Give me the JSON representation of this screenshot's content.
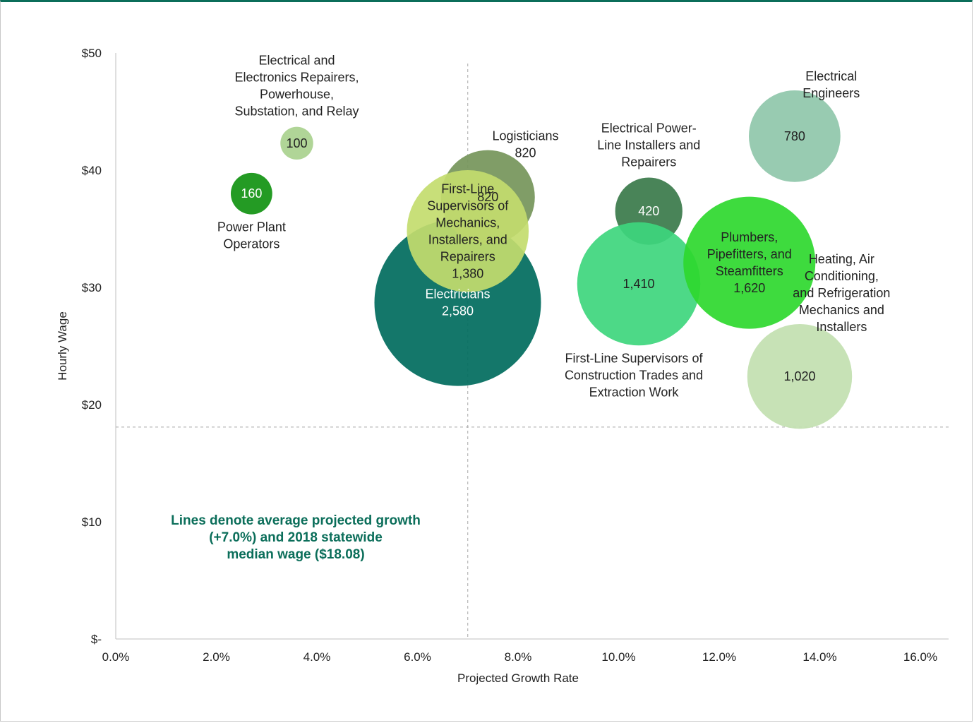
{
  "chart_data": {
    "type": "bubble",
    "xlabel": "Projected Growth Rate",
    "ylabel": "Hourly Wage",
    "xlim": [
      0,
      16
    ],
    "ylim": [
      0,
      50
    ],
    "x_ticks": [
      "0.0%",
      "2.0%",
      "4.0%",
      "6.0%",
      "8.0%",
      "10.0%",
      "12.0%",
      "14.0%",
      "16.0%"
    ],
    "y_ticks": [
      "$-",
      "$10",
      "$20",
      "$30",
      "$40",
      "$50"
    ],
    "reference_lines": {
      "avg_growth": 7.0,
      "median_wage": 18.08
    },
    "annotation": [
      "Lines denote average projected growth",
      "(+7.0%) and 2018 statewide",
      "median wage ($18.08)"
    ],
    "points": [
      {
        "name": "Electricians",
        "x": 6.8,
        "y": 28.7,
        "size": 2580,
        "size_label": "2,580",
        "color": "#006b5d",
        "label_color": "#ffffff",
        "label": [
          "Electricians"
        ],
        "label_pos": "inside"
      },
      {
        "name": "Logisticians",
        "x": 7.4,
        "y": 37.7,
        "size": 820,
        "size_label": "820",
        "color": "#75955a",
        "label_color": "#222222",
        "label": [
          "Logisticians",
          "820"
        ],
        "label_pos": "upper-right"
      },
      {
        "name": "First-Line Supervisors of Mechanics, Installers, and Repairers",
        "x": 7.0,
        "y": 34.8,
        "size": 1380,
        "size_label": "1,380",
        "color": "#c3dc6e",
        "label_color": "#222222",
        "label": [
          "First-Line",
          "Supervisors of",
          "Mechanics,",
          "Installers, and",
          "Repairers"
        ],
        "label_pos": "inside"
      },
      {
        "name": "Electrical and Electronics Repairers, Powerhouse, Substation, and Relay",
        "x": 3.6,
        "y": 42.3,
        "size": 100,
        "size_label": "100",
        "color": "#a9d18e",
        "label_color": "#222222",
        "label": [
          "Electrical and",
          "Electronics Repairers,",
          "Powerhouse,",
          "Substation, and Relay"
        ],
        "label_pos": "above"
      },
      {
        "name": "Power Plant Operators",
        "x": 2.7,
        "y": 38.0,
        "size": 160,
        "size_label": "160",
        "color": "#119211",
        "label_color": "#ffffff",
        "label": [
          "Power Plant",
          "Operators"
        ],
        "label_pos": "below"
      },
      {
        "name": "Electrical Power-Line Installers and Repairers",
        "x": 10.6,
        "y": 36.5,
        "size": 420,
        "size_label": "420",
        "color": "#3a7a4a",
        "label_color": "#ffffff",
        "label": [
          "Electrical Power-",
          "Line Installers and",
          "Repairers"
        ],
        "label_pos": "above"
      },
      {
        "name": "First-Line Supervisors of Construction Trades and Extraction Work",
        "x": 10.4,
        "y": 30.3,
        "size": 1410,
        "size_label": "1,410",
        "color": "#3ed67d",
        "label_color": "#222222",
        "label": [
          "First-Line Supervisors of",
          "Construction Trades and",
          "Extraction Work"
        ],
        "label_pos": "below-left"
      },
      {
        "name": "Plumbers, Pipefitters, and Steamfitters",
        "x": 12.6,
        "y": 32.1,
        "size": 1620,
        "size_label": "1,620",
        "color": "#2ed82e",
        "label_color": "#222222",
        "label": [
          "Plumbers,",
          "Pipefitters, and",
          "Steamfitters"
        ],
        "label_pos": "inside"
      },
      {
        "name": "Electrical Engineers",
        "x": 13.5,
        "y": 42.9,
        "size": 780,
        "size_label": "780",
        "color": "#8fc7aa",
        "label_color": "#222222",
        "label": [
          "Electrical",
          "Engineers"
        ],
        "label_pos": "upper-right"
      },
      {
        "name": "Heating, Air Conditioning, and Refrigeration Mechanics and Installers",
        "x": 13.6,
        "y": 22.4,
        "size": 1020,
        "size_label": "1,020",
        "color": "#c2dfb0",
        "label_color": "#222222",
        "label": [
          "Heating, Air",
          "Conditioning,",
          "and Refrigeration",
          "Mechanics and",
          "Installers"
        ],
        "label_pos": "upper-right"
      }
    ]
  }
}
